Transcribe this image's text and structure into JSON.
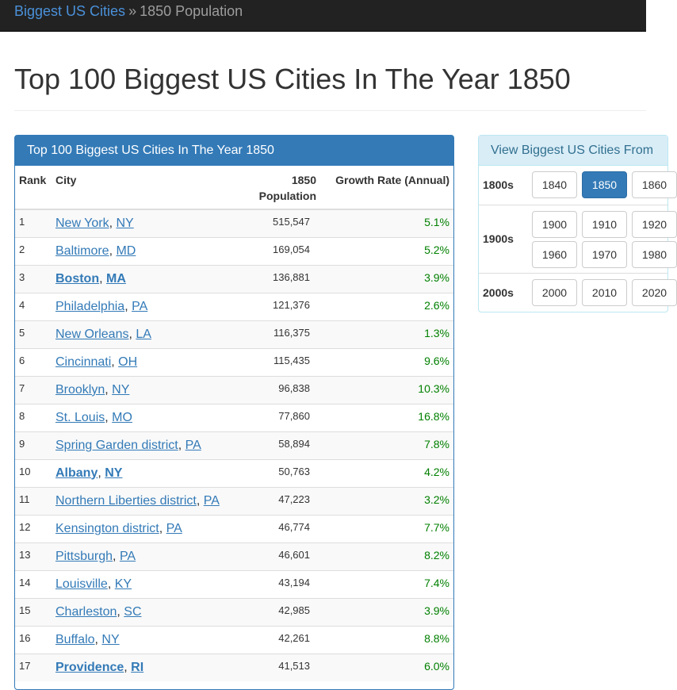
{
  "breadcrumb": {
    "home": "Biggest US Cities",
    "separator": "»",
    "current": "1850 Population"
  },
  "page_title": "Top 100 Biggest US Cities In The Year 1850",
  "table_panel": {
    "heading": "Top 100 Biggest US Cities In The Year 1850",
    "columns": {
      "rank": "Rank",
      "city": "City",
      "pop_line1": "1850",
      "pop_line2": "Population",
      "growth": "Growth Rate (Annual)"
    },
    "rows": [
      {
        "rank": "1",
        "city": "New York",
        "state": "NY",
        "pop": "515,547",
        "growth": "5.1%",
        "bold": false
      },
      {
        "rank": "2",
        "city": "Baltimore",
        "state": "MD",
        "pop": "169,054",
        "growth": "5.2%",
        "bold": false
      },
      {
        "rank": "3",
        "city": "Boston",
        "state": "MA",
        "pop": "136,881",
        "growth": "3.9%",
        "bold": true
      },
      {
        "rank": "4",
        "city": "Philadelphia",
        "state": "PA",
        "pop": "121,376",
        "growth": "2.6%",
        "bold": false
      },
      {
        "rank": "5",
        "city": "New Orleans",
        "state": "LA",
        "pop": "116,375",
        "growth": "1.3%",
        "bold": false
      },
      {
        "rank": "6",
        "city": "Cincinnati",
        "state": "OH",
        "pop": "115,435",
        "growth": "9.6%",
        "bold": false
      },
      {
        "rank": "7",
        "city": "Brooklyn",
        "state": "NY",
        "pop": "96,838",
        "growth": "10.3%",
        "bold": false
      },
      {
        "rank": "8",
        "city": "St. Louis",
        "state": "MO",
        "pop": "77,860",
        "growth": "16.8%",
        "bold": false
      },
      {
        "rank": "9",
        "city": "Spring Garden district",
        "state": "PA",
        "pop": "58,894",
        "growth": "7.8%",
        "bold": false
      },
      {
        "rank": "10",
        "city": "Albany",
        "state": "NY",
        "pop": "50,763",
        "growth": "4.2%",
        "bold": true
      },
      {
        "rank": "11",
        "city": "Northern Liberties district",
        "state": "PA",
        "pop": "47,223",
        "growth": "3.2%",
        "bold": false
      },
      {
        "rank": "12",
        "city": "Kensington district",
        "state": "PA",
        "pop": "46,774",
        "growth": "7.7%",
        "bold": false
      },
      {
        "rank": "13",
        "city": "Pittsburgh",
        "state": "PA",
        "pop": "46,601",
        "growth": "8.2%",
        "bold": false
      },
      {
        "rank": "14",
        "city": "Louisville",
        "state": "KY",
        "pop": "43,194",
        "growth": "7.4%",
        "bold": false
      },
      {
        "rank": "15",
        "city": "Charleston",
        "state": "SC",
        "pop": "42,985",
        "growth": "3.9%",
        "bold": false
      },
      {
        "rank": "16",
        "city": "Buffalo",
        "state": "NY",
        "pop": "42,261",
        "growth": "8.8%",
        "bold": false
      },
      {
        "rank": "17",
        "city": "Providence",
        "state": "RI",
        "pop": "41,513",
        "growth": "6.0%",
        "bold": true
      }
    ]
  },
  "side_panel": {
    "heading": "View Biggest US Cities From",
    "decades": [
      {
        "label": "1800s",
        "rows": [
          [
            "1840",
            "1850",
            "1860"
          ]
        ]
      },
      {
        "label": "1900s",
        "rows": [
          [
            "1900",
            "1910",
            "1920"
          ],
          [
            "1960",
            "1970",
            "1980"
          ]
        ]
      },
      {
        "label": "2000s",
        "rows": [
          [
            "2000",
            "2010",
            "2020"
          ]
        ]
      }
    ],
    "active_year": "1850"
  },
  "colors": {
    "primary": "#337ab7",
    "growth_green": "#008000",
    "navbar": "#222222",
    "info_bg": "#d9edf7"
  }
}
